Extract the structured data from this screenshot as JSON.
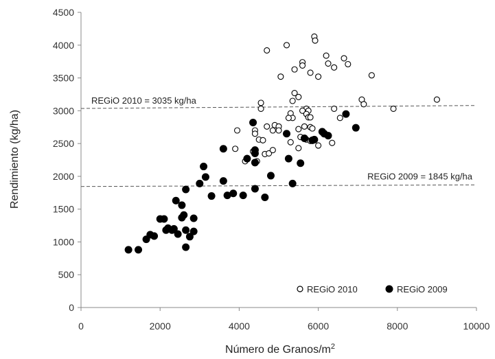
{
  "chart_data": {
    "type": "scatter",
    "xlabel": "Número de Granos/m",
    "xlabel_sup": "2",
    "ylabel": "Rendimiento (kg/ha)",
    "xlim": [
      0,
      10000
    ],
    "ylim": [
      0,
      4500
    ],
    "x_ticks": [
      "0",
      "2000",
      "4000",
      "6000",
      "8000",
      "10000"
    ],
    "y_ticks": [
      "0",
      "500",
      "1000",
      "1500",
      "2000",
      "2500",
      "3000",
      "3500",
      "4000",
      "4500"
    ],
    "grid": false,
    "legend_position": "bottom-right",
    "reference_lines": [
      {
        "label": "REGiO 2010 = 3035 kg/ha",
        "y_start": 3035,
        "y_end": 3080
      },
      {
        "label": "REGiO 2009 =  1845 kg/ha",
        "y_start": 1845,
        "y_end": 1870
      }
    ],
    "series": [
      {
        "name": "REGiO 2010",
        "marker": "open-circle",
        "color": "#000000",
        "points": [
          [
            5900,
            4130
          ],
          [
            5920,
            4070
          ],
          [
            5200,
            4000
          ],
          [
            4700,
            3920
          ],
          [
            6200,
            3840
          ],
          [
            6650,
            3800
          ],
          [
            6750,
            3710
          ],
          [
            6250,
            3720
          ],
          [
            6400,
            3660
          ],
          [
            5600,
            3740
          ],
          [
            5600,
            3690
          ],
          [
            5400,
            3630
          ],
          [
            5800,
            3580
          ],
          [
            6000,
            3520
          ],
          [
            5050,
            3520
          ],
          [
            7350,
            3540
          ],
          [
            5400,
            3270
          ],
          [
            5500,
            3210
          ],
          [
            5350,
            3150
          ],
          [
            4550,
            3120
          ],
          [
            7100,
            3170
          ],
          [
            7150,
            3100
          ],
          [
            9000,
            3170
          ],
          [
            7900,
            3030
          ],
          [
            4550,
            3030
          ],
          [
            5700,
            3030
          ],
          [
            5750,
            3000
          ],
          [
            6400,
            3030
          ],
          [
            5600,
            3000
          ],
          [
            5700,
            2950
          ],
          [
            5750,
            2900
          ],
          [
            5300,
            2960
          ],
          [
            5350,
            2890
          ],
          [
            5250,
            2890
          ],
          [
            6550,
            2890
          ],
          [
            5800,
            2900
          ],
          [
            4700,
            2760
          ],
          [
            4850,
            2700
          ],
          [
            4900,
            2780
          ],
          [
            5000,
            2760
          ],
          [
            5000,
            2700
          ],
          [
            5500,
            2720
          ],
          [
            5800,
            2750
          ],
          [
            5850,
            2730
          ],
          [
            5650,
            2760
          ],
          [
            3950,
            2700
          ],
          [
            4400,
            2700
          ],
          [
            4400,
            2650
          ],
          [
            4500,
            2560
          ],
          [
            4600,
            2550
          ],
          [
            5550,
            2600
          ],
          [
            5700,
            2560
          ],
          [
            5800,
            2540
          ],
          [
            6350,
            2510
          ],
          [
            5300,
            2520
          ],
          [
            6000,
            2470
          ],
          [
            5500,
            2430
          ],
          [
            4150,
            2230
          ],
          [
            4450,
            2230
          ],
          [
            4350,
            2380
          ],
          [
            4650,
            2340
          ],
          [
            4750,
            2350
          ],
          [
            3900,
            2420
          ],
          [
            4850,
            2400
          ],
          [
            4200,
            2280
          ]
        ]
      },
      {
        "name": "REGiO 2009",
        "marker": "filled-circle",
        "color": "#000000",
        "points": [
          [
            1200,
            880
          ],
          [
            1450,
            880
          ],
          [
            1650,
            1040
          ],
          [
            1750,
            1110
          ],
          [
            1850,
            1090
          ],
          [
            2000,
            1350
          ],
          [
            2100,
            1350
          ],
          [
            2150,
            1180
          ],
          [
            2200,
            1210
          ],
          [
            2300,
            1180
          ],
          [
            2350,
            1200
          ],
          [
            2400,
            1630
          ],
          [
            2450,
            1120
          ],
          [
            2550,
            1560
          ],
          [
            2600,
            1410
          ],
          [
            2550,
            1370
          ],
          [
            2650,
            1800
          ],
          [
            2650,
            1180
          ],
          [
            2650,
            920
          ],
          [
            2750,
            1080
          ],
          [
            2850,
            1360
          ],
          [
            2850,
            1160
          ],
          [
            3000,
            1890
          ],
          [
            3100,
            2150
          ],
          [
            3150,
            1990
          ],
          [
            3300,
            1700
          ],
          [
            3600,
            2420
          ],
          [
            3600,
            1930
          ],
          [
            3700,
            1710
          ],
          [
            3850,
            1740
          ],
          [
            4100,
            1710
          ],
          [
            4200,
            2270
          ],
          [
            4350,
            2820
          ],
          [
            4400,
            2400
          ],
          [
            4400,
            2350
          ],
          [
            4400,
            2210
          ],
          [
            4400,
            1810
          ],
          [
            4650,
            1680
          ],
          [
            4800,
            2010
          ],
          [
            5200,
            2650
          ],
          [
            5250,
            2270
          ],
          [
            5350,
            1890
          ],
          [
            5550,
            2200
          ],
          [
            5650,
            2580
          ],
          [
            5850,
            2550
          ],
          [
            5900,
            2560
          ],
          [
            6100,
            2680
          ],
          [
            6150,
            2650
          ],
          [
            6250,
            2620
          ],
          [
            6700,
            2950
          ],
          [
            6950,
            2740
          ]
        ]
      }
    ]
  }
}
